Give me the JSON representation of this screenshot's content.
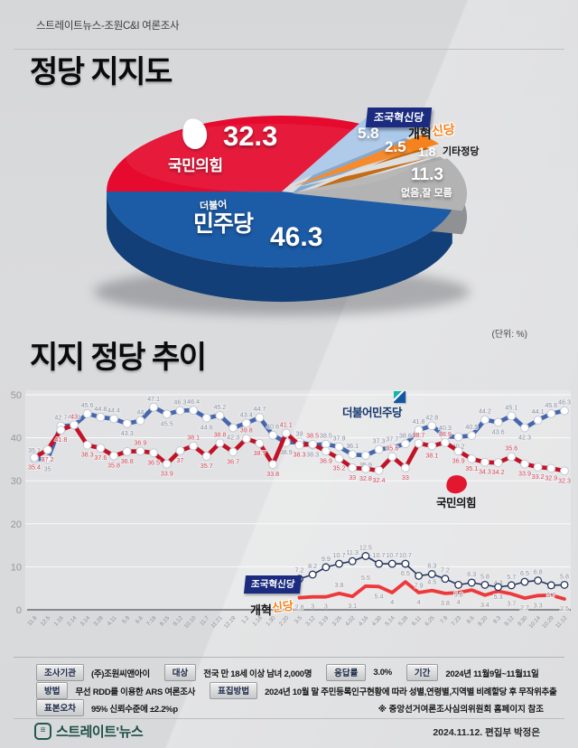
{
  "header": {
    "source": "스트레이트뉴스-조원C&I 여론조사"
  },
  "party_support": {
    "title": "정당 지지도",
    "unit_note": "(단위: %)"
  },
  "trend": {
    "title": "지지 정당 추이"
  },
  "pie_labels": {
    "ppp_value": "32.3",
    "ppp_name": "국민의힘",
    "dp_small": "더불어",
    "dp_name": "민주당",
    "dp_value": "46.3",
    "rkp_name": "조국혁신당",
    "rkp_value": "5.8",
    "rp_black": "개혁",
    "rp_orange": "신당",
    "rp_value": "2.5",
    "etc_value": "1.8",
    "etc_name": "기타정당",
    "none_value": "11.3",
    "none_name": "없음,잘 모름"
  },
  "legends": {
    "dp": "더불어민주당",
    "ppp": "국민의힘",
    "rkp": "조국혁신당",
    "rp_black": "개혁",
    "rp_orange": "신당"
  },
  "chart_data": [
    {
      "type": "pie",
      "title": "정당 지지도",
      "unit": "%",
      "slices": [
        {
          "key": "dp",
          "label": "더불어민주당",
          "value": 46.3,
          "color": "#1c5ba6",
          "side_color": "#123f77"
        },
        {
          "key": "none",
          "label": "없음, 잘 모름",
          "value": 11.3,
          "color": "#b3b3b3",
          "side_color": "#8f9194"
        },
        {
          "key": "etc",
          "label": "기타정당",
          "value": 1.8,
          "color": "#dddddd",
          "side_color": "#aaaaaa"
        },
        {
          "key": "rp",
          "label": "개혁신당",
          "value": 2.5,
          "color": "#f5831d",
          "side_color": "#c06105"
        },
        {
          "key": "rkp",
          "label": "조국혁신당",
          "value": 5.8,
          "color": "#aac8e8",
          "side_color": "#7fa3c9"
        },
        {
          "key": "ppp",
          "label": "국민의힘",
          "value": 32.3,
          "color": "#e50a2e",
          "side_color": "#a30721"
        }
      ]
    },
    {
      "type": "line",
      "title": "지지 정당 추이",
      "ylim": [
        0,
        50
      ],
      "yticks": [
        0,
        10,
        20,
        30,
        40,
        50
      ],
      "x": [
        "11.8",
        "12.5",
        "1.16",
        "2.14",
        "3.14",
        "3.28",
        "4.11",
        "5.9",
        "6.6",
        "7.18",
        "8.15",
        "9.12",
        "10.10",
        "11.7",
        "11.21",
        "12.19",
        "1.2",
        "1.16",
        "1.30",
        "2.20",
        "3.5",
        "3.12",
        "3.19",
        "3.26",
        "4.02",
        "4.16",
        "4.30",
        "5.14",
        "5.28",
        "6.11",
        "6.25",
        "7.9",
        "7.23",
        "8.6",
        "8.20",
        "9.3",
        "9.12",
        "9.30",
        "10.14",
        "10.29",
        "11.12"
      ],
      "series": [
        {
          "key": "dp",
          "name": "더불어민주당",
          "color": "#4566ae",
          "label_color": "#8c92a0",
          "marker": "circle",
          "width": 4.6,
          "values": [
            35.1,
            35.0,
            42.7,
            42.9,
            45.6,
            44.8,
            44.4,
            43.3,
            44.0,
            47.1,
            45.5,
            46.3,
            46.4,
            44.6,
            45.2,
            42.3,
            43.4,
            44.7,
            40.6,
            38.9,
            39.0,
            38.3,
            38.5,
            37.9,
            36.1,
            35.9,
            37.3,
            37.7,
            38.6,
            41.8,
            42.8,
            40.3,
            40.2,
            40.5,
            44.2,
            43.6,
            45.1,
            42.3,
            44.1,
            45.6,
            46.3
          ]
        },
        {
          "key": "ppp",
          "name": "국민의힘",
          "color": "#c11226",
          "label_color": "#d14b57",
          "marker": "circle",
          "width": 4.6,
          "values": [
            35.4,
            37.2,
            41.8,
            43.0,
            38.3,
            37.6,
            35.8,
            36.8,
            36.9,
            36.5,
            33.9,
            37.0,
            38.1,
            35.7,
            38.8,
            36.7,
            39.8,
            38.7,
            33.8,
            41.1,
            38.3,
            38.5,
            36.9,
            35.2,
            33.0,
            32.8,
            32.4,
            35.6,
            33.0,
            38.7,
            38.1,
            38.9,
            36.9,
            35.1,
            34.3,
            34.2,
            35.6,
            33.9,
            33.2,
            32.9,
            32.3
          ]
        },
        {
          "key": "rkp",
          "name": "조국혁신당",
          "color": "#26365f",
          "label_color": "#8d93a0",
          "marker": "circle-small",
          "width": 1.6,
          "values": [
            null,
            null,
            null,
            null,
            null,
            null,
            null,
            null,
            null,
            null,
            null,
            null,
            null,
            null,
            null,
            null,
            null,
            null,
            null,
            null,
            7.2,
            8.2,
            9.9,
            10.7,
            11.3,
            12.5,
            10.7,
            10.7,
            10.7,
            7.9,
            8.3,
            7.2,
            5.8,
            6.3,
            5.8,
            5.3,
            5.7,
            6.5,
            6.8,
            5.7,
            5.8
          ]
        },
        {
          "key": "rp",
          "name": "개혁신당",
          "color": "#ee393b",
          "label_color": "#969696",
          "marker": "none",
          "width": 3.8,
          "values": [
            null,
            null,
            null,
            null,
            null,
            null,
            null,
            null,
            null,
            null,
            null,
            null,
            null,
            null,
            null,
            null,
            null,
            null,
            null,
            null,
            2.8,
            3.0,
            3.0,
            3.8,
            3.1,
            5.5,
            5.4,
            4.0,
            6.5,
            4.0,
            4.5,
            3.8,
            4.0,
            4.6,
            3.4,
            4.3,
            3.7,
            2.7,
            3.3,
            3.4,
            2.5
          ]
        }
      ]
    }
  ],
  "survey_info": {
    "rows": [
      [
        {
          "label": "조사기관",
          "value": "(주)조원씨앤아이"
        },
        {
          "label": "대상",
          "value": "전국 만 18세 이상 남녀 2,000명"
        },
        {
          "label": "응답률",
          "value": "3.0%"
        },
        {
          "label": "기간",
          "value": "2024년 11월9일~11월11일"
        }
      ],
      [
        {
          "label": "방법",
          "value": "무선 RDD를 이용한 ARS 여론조사"
        },
        {
          "label": "표집방법",
          "value": "2024년 10월 말 주민등록인구현황에 따라 성별,연령별,지역별 비례할당 후 무작위추출"
        }
      ],
      [
        {
          "label": "표본오차",
          "value": "95% 신뢰수준에 ±2.2%p"
        }
      ]
    ],
    "note": "※ 중앙선거여론조사심의위원회 홈페이지 참조"
  },
  "footer": {
    "brand": "스트레이트'뉴스",
    "date_editor": "2024.11.12. 편집부 박정은"
  }
}
